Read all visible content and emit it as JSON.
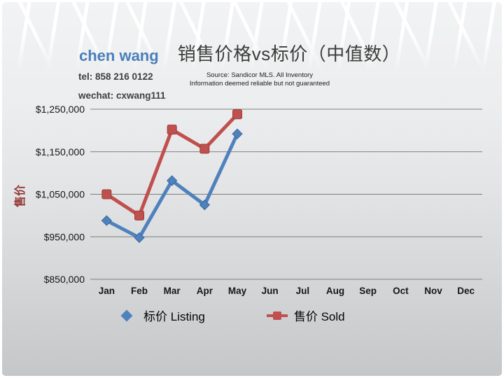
{
  "header": {
    "agent_name": "chen wang",
    "tel": "tel: 858 216 0122",
    "wechat": "wechat: cxwang111",
    "source_line1": "Source: Sandicor MLS. All Inventory",
    "source_line2": "Information deemed reliable but not guaranteed"
  },
  "chart_data": {
    "type": "line",
    "title": "销售价格vs标价（中值数）",
    "ylabel": "售价",
    "xlabel": "",
    "categories": [
      "Jan",
      "Feb",
      "Mar",
      "Apr",
      "May",
      "Jun",
      "Jul",
      "Aug",
      "Sep",
      "Oct",
      "Nov",
      "Dec"
    ],
    "series": [
      {
        "name": "标价 Listing",
        "color": "#4F81BD",
        "edge": "#39699F",
        "marker": "diamond",
        "values": [
          988000,
          948000,
          1082000,
          1025000,
          1192000,
          null,
          null,
          null,
          null,
          null,
          null,
          null
        ]
      },
      {
        "name": "售价 Sold",
        "color": "#C0504D",
        "edge": "#9E3B38",
        "marker": "square",
        "values": [
          1050000,
          1000000,
          1202000,
          1157000,
          1238000,
          null,
          null,
          null,
          null,
          null,
          null,
          null
        ]
      }
    ],
    "ylim": [
      850000,
      1250000
    ],
    "ytick_step": 100000,
    "ytick_labels": [
      "$850,000",
      "$950,000",
      "$1,050,000",
      "$1,150,000",
      "$1,250,000"
    ],
    "grid": true,
    "legend_position": "bottom"
  },
  "colors": {
    "accent_blue": "#4F81BD",
    "accent_red": "#C0504D",
    "agent_name_blue": "#4A7EBB",
    "y_axis_title_red": "#943634",
    "gridline": "#7F7F7F"
  }
}
